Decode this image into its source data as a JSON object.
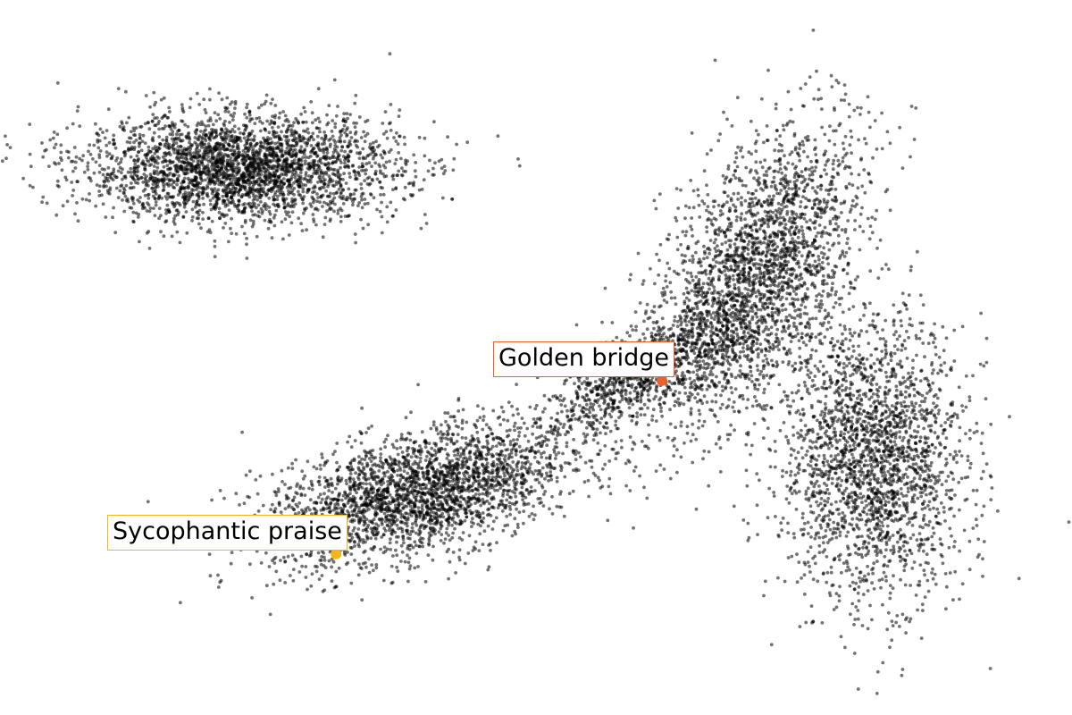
{
  "chart_data": {
    "type": "scatter",
    "title": "",
    "xlabel": "",
    "ylabel": "",
    "axes_visible": false,
    "grid": false,
    "point_color": "#000000",
    "xlim": [
      -10,
      10
    ],
    "ylim": [
      -6.7,
      6.7
    ],
    "clusters": [
      {
        "center": [
          -5.5,
          3.55
        ],
        "spread": [
          1.45,
          0.5
        ],
        "rotation_deg": 0,
        "approx_points": 3000
      },
      {
        "center": [
          -2.2,
          -2.55
        ],
        "spread": [
          1.45,
          0.55
        ],
        "rotation_deg": 15,
        "approx_points": 2700
      },
      {
        "center": [
          1.9,
          -0.35
        ],
        "spread": [
          1.1,
          0.32
        ],
        "rotation_deg": 30,
        "approx_points": 900
      },
      {
        "center": [
          4.05,
          1.5
        ],
        "spread": [
          0.75,
          1.55
        ],
        "rotation_deg": -28,
        "approx_points": 2600
      },
      {
        "center": [
          6.3,
          -1.9
        ],
        "spread": [
          0.85,
          1.3
        ],
        "rotation_deg": 0,
        "approx_points": 2300
      }
    ],
    "annotations": [
      {
        "label": "Golden bridge",
        "x": 2.35,
        "y": -0.43,
        "color": "#e8622c"
      },
      {
        "label": "Sycophantic praise",
        "x": -3.73,
        "y": -3.68,
        "color": "#f2b51c"
      }
    ]
  }
}
